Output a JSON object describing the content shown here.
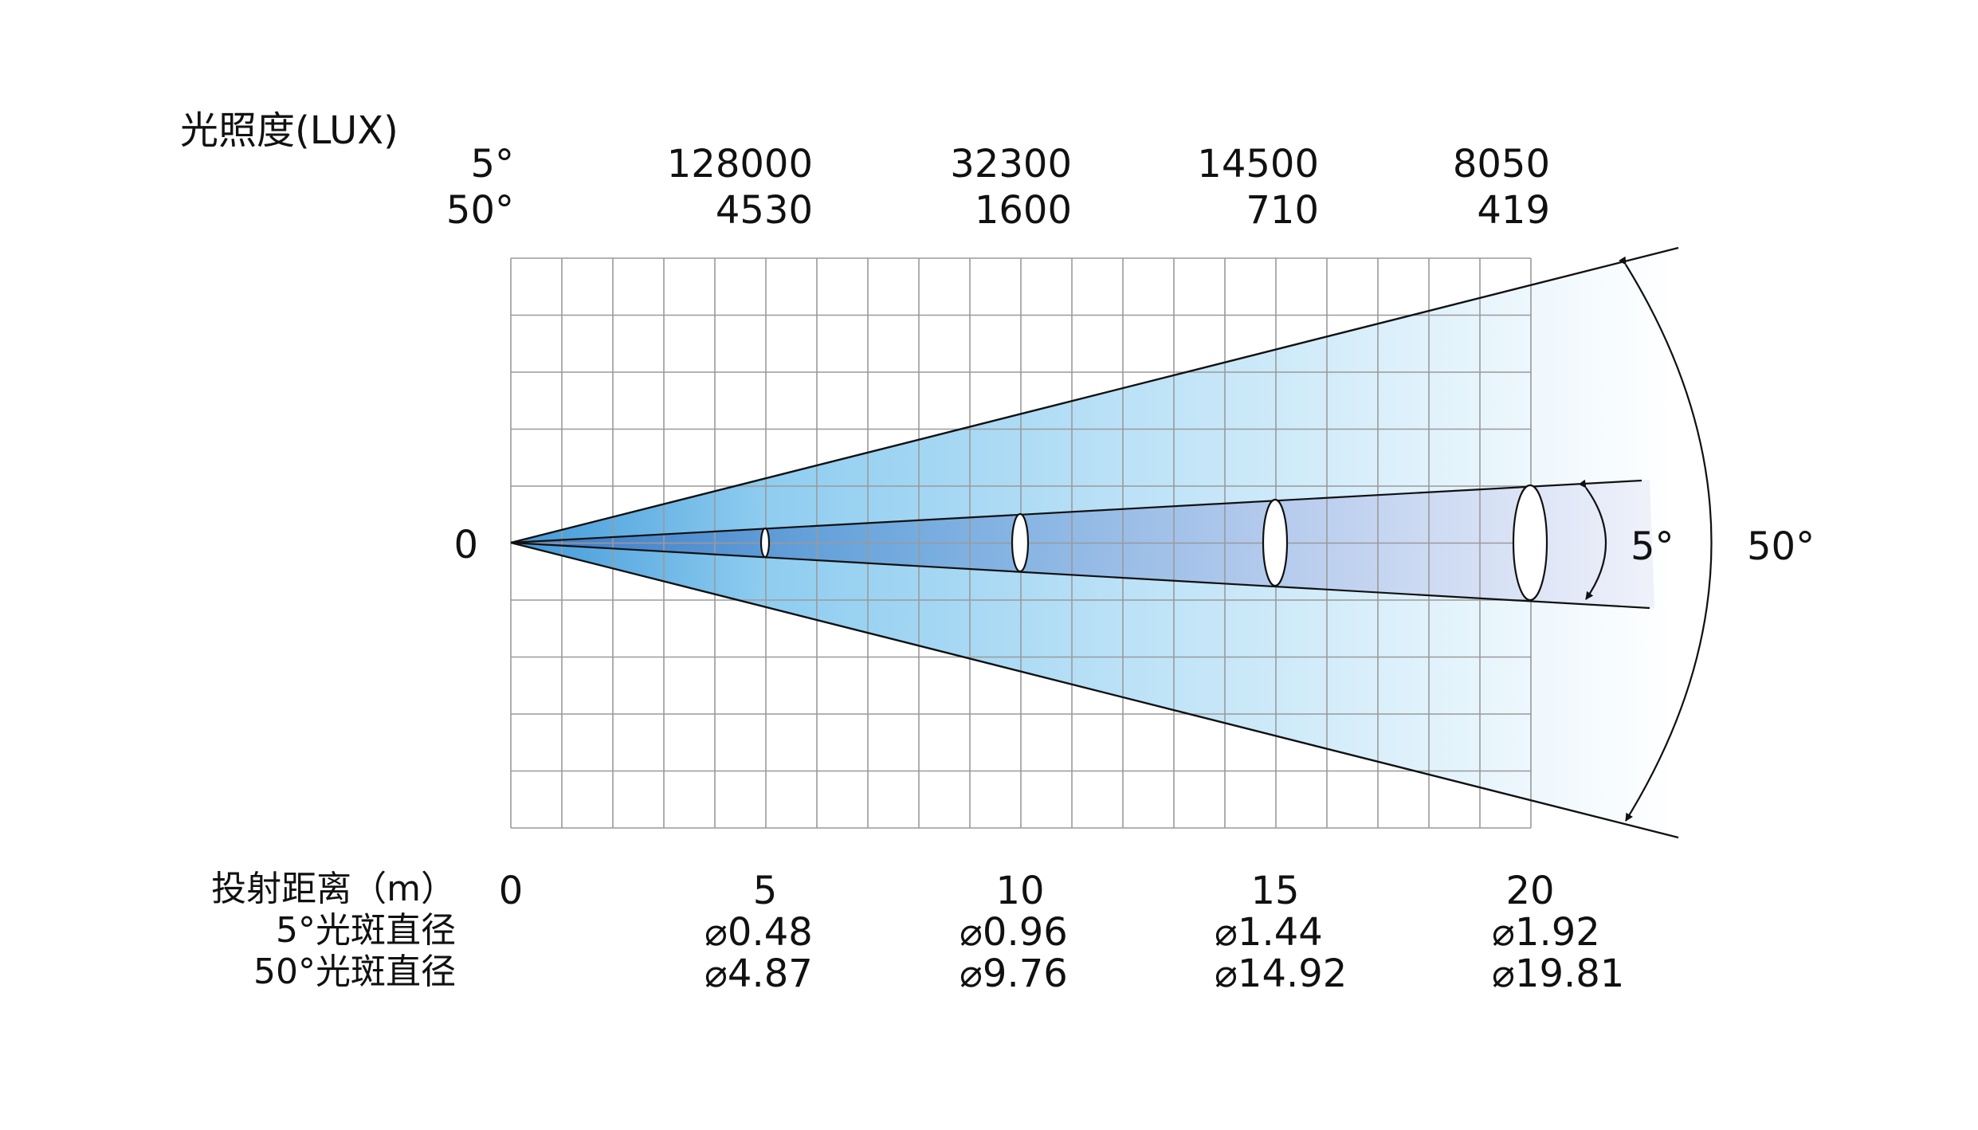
{
  "illuminance_label": "光照度(LUX)",
  "rows": {
    "a": {
      "angle": "5°",
      "lux": [
        "128000",
        "32300",
        "14500",
        "8050"
      ]
    },
    "b": {
      "angle": "50°",
      "lux": [
        "4530",
        "1600",
        "710",
        "419"
      ]
    }
  },
  "origin_label": "0",
  "distance_label": "投射距离（m）",
  "distances": [
    "0",
    "5",
    "10",
    "15",
    "20"
  ],
  "spot_labels": {
    "a": "5°光斑直径",
    "b": "50°光斑直径"
  },
  "diameter_symbol": "⌀",
  "spot_a": [
    "0.48",
    "0.96",
    "1.44",
    "1.92"
  ],
  "spot_b": [
    "4.87",
    "9.76",
    "14.92",
    "19.81"
  ],
  "angle_labels": {
    "narrow": "5°",
    "wide": "50°"
  },
  "colors": {
    "beam_dark": "#3f8fd4",
    "beam_light": "#aedcf6",
    "grid": "#9a9a9a"
  }
}
